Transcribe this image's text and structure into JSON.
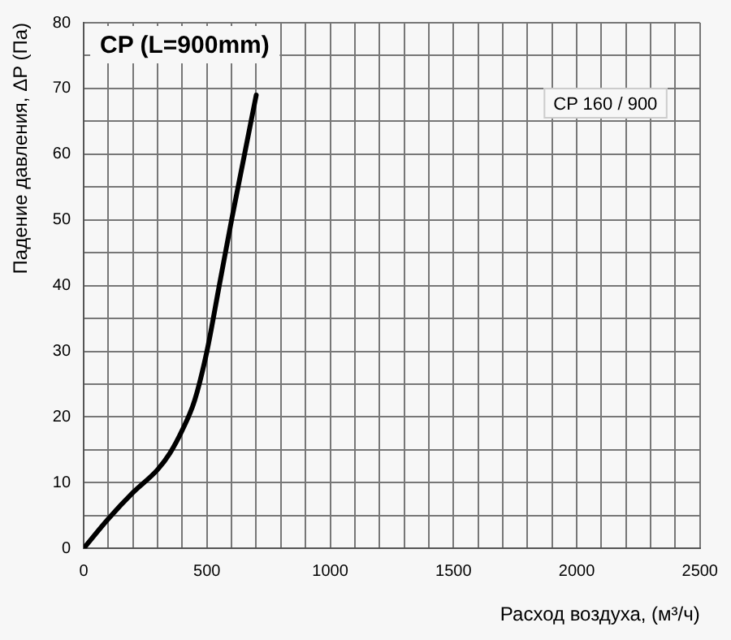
{
  "chart_data": {
    "type": "line",
    "title": "CP (L=900mm)",
    "xlabel": "Расход воздуха, (м³/ч)",
    "ylabel": "Падение давления, ΔP (Па)",
    "x": [
      0,
      100,
      200,
      300,
      350,
      400,
      450,
      500,
      550,
      600,
      650,
      700
    ],
    "series": [
      {
        "name": "CP 160 / 900",
        "color": "#000000",
        "values": [
          0,
          4.5,
          8.5,
          12,
          14.5,
          18,
          22.5,
          30,
          40,
          50,
          59.5,
          69
        ]
      }
    ],
    "xlim": [
      0,
      2500
    ],
    "ylim": [
      0,
      80
    ],
    "xticks": [
      0,
      {
        "value": 100,
        "label": null
      },
      {
        "value": 200,
        "label": null
      },
      {
        "value": 300,
        "label": null
      },
      {
        "value": 400,
        "label": null
      },
      500,
      {
        "value": 600,
        "label": null
      },
      {
        "value": 700,
        "label": null
      },
      {
        "value": 800,
        "label": null
      },
      {
        "value": 900,
        "label": null
      },
      1000,
      {
        "value": 1100,
        "label": null
      },
      {
        "value": 1200,
        "label": null
      },
      {
        "value": 1300,
        "label": null
      },
      {
        "value": 1400,
        "label": null
      },
      1500,
      {
        "value": 1600,
        "label": null
      },
      {
        "value": 1700,
        "label": null
      },
      {
        "value": 1800,
        "label": null
      },
      {
        "value": 1900,
        "label": null
      },
      2000,
      {
        "value": 2100,
        "label": null
      },
      {
        "value": 2200,
        "label": null
      },
      {
        "value": 2300,
        "label": null
      },
      {
        "value": 2400,
        "label": null
      },
      2500
    ],
    "yticks": [
      0,
      {
        "value": 5,
        "label": null
      },
      10,
      {
        "value": 15,
        "label": null
      },
      20,
      {
        "value": 25,
        "label": null
      },
      30,
      {
        "value": 35,
        "label": null
      },
      40,
      {
        "value": 45,
        "label": null
      },
      50,
      {
        "value": 55,
        "label": null
      },
      60,
      {
        "value": 65,
        "label": null
      },
      70,
      {
        "value": 75,
        "label": null
      },
      80
    ],
    "grid": true,
    "legend": "top right",
    "marker": "none",
    "line_style": "solid"
  }
}
